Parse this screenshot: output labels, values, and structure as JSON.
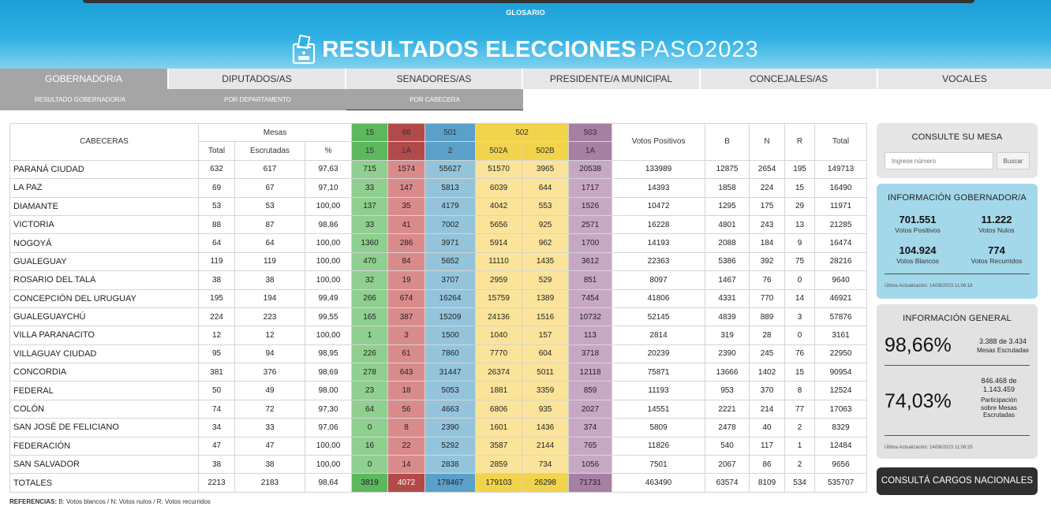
{
  "header": {
    "glosario": "GLOSARIO",
    "title_main": "RESULTADOS ELECCIONES",
    "title_sub": "PASO2023"
  },
  "tabs": [
    {
      "label": "GOBERNADOR/A",
      "active": true
    },
    {
      "label": "DIPUTADOS/AS",
      "active": false
    },
    {
      "label": "SENADORES/AS",
      "active": false
    },
    {
      "label": "PRESIDENTE/A MUNICIPAL",
      "active": false
    },
    {
      "label": "CONCEJALES/AS",
      "active": false
    },
    {
      "label": "VOCALES",
      "active": false
    }
  ],
  "subtabs": [
    {
      "label": "RESULTADO GOBERNADOR/A",
      "active": false
    },
    {
      "label": "POR DEPARTAMENTO",
      "active": false
    },
    {
      "label": "POR CABECERA",
      "active": true
    }
  ],
  "table": {
    "col_cabeceras": "CABECERAS",
    "col_mesas": "Mesas",
    "col_total": "Total",
    "col_escrutadas": "Escrutadas",
    "col_pct": "%",
    "parties": [
      {
        "code": "15",
        "sub": [
          "15"
        ]
      },
      {
        "code": "68",
        "sub": [
          "1A"
        ]
      },
      {
        "code": "501",
        "sub": [
          "2"
        ]
      },
      {
        "code": "502",
        "sub": [
          "502A",
          "502B"
        ]
      },
      {
        "code": "503",
        "sub": [
          "1A"
        ]
      }
    ],
    "col_votos_positivos": "Votos Positivos",
    "col_b": "B",
    "col_n": "N",
    "col_r": "R",
    "col_total_votos": "Total",
    "rows": [
      [
        "PARANÁ CIUDAD",
        "632",
        "617",
        "97,63",
        "715",
        "1574",
        "55627",
        "51570",
        "3965",
        "20538",
        "133989",
        "12875",
        "2654",
        "195",
        "149713"
      ],
      [
        "LA PAZ",
        "69",
        "67",
        "97,10",
        "33",
        "147",
        "5813",
        "6039",
        "644",
        "1717",
        "14393",
        "1858",
        "224",
        "15",
        "16490"
      ],
      [
        "DIAMANTE",
        "53",
        "53",
        "100,00",
        "137",
        "35",
        "4179",
        "4042",
        "553",
        "1526",
        "10472",
        "1295",
        "175",
        "29",
        "11971"
      ],
      [
        "VICTORIA",
        "88",
        "87",
        "98,86",
        "33",
        "41",
        "7002",
        "5656",
        "925",
        "2571",
        "16228",
        "4801",
        "243",
        "13",
        "21285"
      ],
      [
        "NOGOYÁ",
        "64",
        "64",
        "100,00",
        "1360",
        "286",
        "3971",
        "5914",
        "962",
        "1700",
        "14193",
        "2088",
        "184",
        "9",
        "16474"
      ],
      [
        "GUALEGUAY",
        "119",
        "119",
        "100,00",
        "470",
        "84",
        "5652",
        "11110",
        "1435",
        "3612",
        "22363",
        "5386",
        "392",
        "75",
        "28216"
      ],
      [
        "ROSARIO DEL TALA",
        "38",
        "38",
        "100,00",
        "32",
        "19",
        "3707",
        "2959",
        "529",
        "851",
        "8097",
        "1467",
        "76",
        "0",
        "9640"
      ],
      [
        "CONCEPCIÓN DEL URUGUAY",
        "195",
        "194",
        "99,49",
        "266",
        "674",
        "16264",
        "15759",
        "1389",
        "7454",
        "41806",
        "4331",
        "770",
        "14",
        "46921"
      ],
      [
        "GUALEGUAYCHÚ",
        "224",
        "223",
        "99,55",
        "165",
        "387",
        "15209",
        "24136",
        "1516",
        "10732",
        "52145",
        "4839",
        "889",
        "3",
        "57876"
      ],
      [
        "VILLA PARANACITO",
        "12",
        "12",
        "100,00",
        "1",
        "3",
        "1500",
        "1040",
        "157",
        "113",
        "2814",
        "319",
        "28",
        "0",
        "3161"
      ],
      [
        "VILLAGUAY CIUDAD",
        "95",
        "94",
        "98,95",
        "226",
        "61",
        "7860",
        "7770",
        "604",
        "3718",
        "20239",
        "2390",
        "245",
        "76",
        "22950"
      ],
      [
        "CONCORDIA",
        "381",
        "376",
        "98,69",
        "278",
        "643",
        "31447",
        "26374",
        "5011",
        "12118",
        "75871",
        "13666",
        "1402",
        "15",
        "90954"
      ],
      [
        "FEDERAL",
        "50",
        "49",
        "98,00",
        "23",
        "18",
        "5053",
        "1881",
        "3359",
        "859",
        "11193",
        "953",
        "370",
        "8",
        "12524"
      ],
      [
        "COLÓN",
        "74",
        "72",
        "97,30",
        "64",
        "56",
        "4663",
        "6806",
        "935",
        "2027",
        "14551",
        "2221",
        "214",
        "77",
        "17063"
      ],
      [
        "SAN JOSÉ DE FELICIANO",
        "34",
        "33",
        "97,06",
        "0",
        "8",
        "2390",
        "1601",
        "1436",
        "374",
        "5809",
        "2478",
        "40",
        "2",
        "8329"
      ],
      [
        "FEDERACIÓN",
        "47",
        "47",
        "100,00",
        "16",
        "22",
        "5292",
        "3587",
        "2144",
        "765",
        "11826",
        "540",
        "117",
        "1",
        "12484"
      ],
      [
        "SAN SALVADOR",
        "38",
        "38",
        "100,00",
        "0",
        "14",
        "2838",
        "2859",
        "734",
        "1056",
        "7501",
        "2067",
        "86",
        "2",
        "9656"
      ]
    ],
    "totals": [
      "TOTALES",
      "2213",
      "2183",
      "98,64",
      "3819",
      "4072",
      "178467",
      "179103",
      "26298",
      "71731",
      "463490",
      "63574",
      "8109",
      "534",
      "535707"
    ]
  },
  "consulte": {
    "title": "CONSULTE SU MESA",
    "placeholder": "Ingrese número",
    "button": "Buscar"
  },
  "gobernador": {
    "title": "INFORMACIÓN GOBERNADOR/A",
    "positivos_val": "701.551",
    "positivos_lbl": "Votos Positivos",
    "nulos_val": "11.222",
    "nulos_lbl": "Votos Nulos",
    "blancos_val": "104.924",
    "blancos_lbl": "Votos Blancos",
    "recurridos_val": "774",
    "recurridos_lbl": "Votos Recurridos",
    "updated": "Última Actualización: 14/08/2023 11:06:18"
  },
  "general": {
    "title": "INFORMACIÓN GENERAL",
    "pct_mesas": "98,66%",
    "mesas_count": "3.388 de 3.434",
    "mesas_lbl": "Mesas Escrutadas",
    "pct_participacion": "74,03%",
    "part_count_a": "846.468 de",
    "part_count_b": "1.143.459",
    "part_lbl_a": "Participación",
    "part_lbl_b": "sobre Mesas",
    "part_lbl_c": "Escrutadas",
    "updated": "Última Actualización: 14/08/2023 11:06:25"
  },
  "nacionales_button": "CONSULTÁ CARGOS NACIONALES",
  "refs": {
    "label": "REFERENCIAS:",
    "text": " B: Votos blancos / N: Votos nulos / R: Votos recurridos"
  }
}
